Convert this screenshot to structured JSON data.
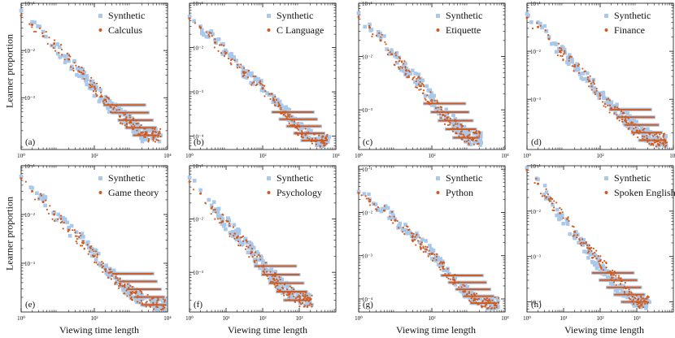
{
  "figure": {
    "ylabel": "Learner proportion",
    "xlabel": "Viewing time length"
  },
  "colors": {
    "synthetic": "#a9c8ea",
    "empirical": "#d45a1b",
    "axis": "#111111"
  },
  "chart_data": [
    {
      "panel": "(a)",
      "type": "scatter",
      "log_x": true,
      "log_y": true,
      "xlim": [
        1,
        10000
      ],
      "ylim": [
        8e-05,
        0.1
      ],
      "xticks": [
        {
          "v": 1,
          "label": "10⁰"
        },
        {
          "v": 100,
          "label": "10²"
        },
        {
          "v": 10000,
          "label": "10⁴"
        }
      ],
      "yticks": [
        {
          "v": 0.1,
          "label": "10⁻¹"
        },
        {
          "v": 0.01,
          "label": "10⁻²"
        },
        {
          "v": 0.001,
          "label": "10⁻³"
        }
      ],
      "series": [
        {
          "name": "Synthetic",
          "points": [
            [
              1,
              0.07
            ],
            [
              2,
              0.04
            ],
            [
              4,
              0.025
            ],
            [
              8,
              0.012
            ],
            [
              20,
              0.006
            ],
            [
              50,
              0.003
            ],
            [
              100,
              0.0015
            ],
            [
              200,
              0.0008
            ],
            [
              500,
              0.00045
            ],
            [
              1000,
              0.0003
            ],
            [
              2000,
              0.00016
            ]
          ]
        },
        {
          "name": "Calculus",
          "points": [
            [
              1,
              0.055
            ],
            [
              2,
              0.035
            ],
            [
              4,
              0.02
            ],
            [
              8,
              0.014
            ],
            [
              20,
              0.0065
            ],
            [
              50,
              0.0032
            ],
            [
              100,
              0.0017
            ],
            [
              200,
              0.0009
            ],
            [
              500,
              0.0004
            ],
            [
              1000,
              0.0003
            ],
            [
              3000,
              0.00016
            ]
          ]
        }
      ]
    },
    {
      "panel": "(b)",
      "type": "scatter",
      "log_x": true,
      "log_y": true,
      "xlim": [
        1,
        10000
      ],
      "ylim": [
        5e-05,
        0.1
      ],
      "xticks": [
        {
          "v": 1,
          "label": "10⁰"
        },
        {
          "v": 100,
          "label": "10²"
        },
        {
          "v": 10000,
          "label": "10⁴"
        }
      ],
      "yticks": [
        {
          "v": 0.1,
          "label": "10⁻¹"
        },
        {
          "v": 0.01,
          "label": "10⁻²"
        },
        {
          "v": 0.001,
          "label": "10⁻³"
        },
        {
          "v": 0.0001,
          "label": "10⁻⁴"
        }
      ],
      "series": [
        {
          "name": "Synthetic",
          "points": [
            [
              1,
              0.05
            ],
            [
              2,
              0.03
            ],
            [
              5,
              0.015
            ],
            [
              10,
              0.008
            ],
            [
              30,
              0.003
            ],
            [
              100,
              0.0013
            ],
            [
              200,
              0.0007
            ],
            [
              400,
              0.0004
            ],
            [
              800,
              0.00018
            ],
            [
              1500,
              0.00012
            ],
            [
              3000,
              8e-05
            ]
          ]
        },
        {
          "name": "C Language",
          "points": [
            [
              1,
              0.045
            ],
            [
              2,
              0.028
            ],
            [
              5,
              0.013
            ],
            [
              10,
              0.0075
            ],
            [
              30,
              0.0028
            ],
            [
              100,
              0.0012
            ],
            [
              200,
              0.00065
            ],
            [
              400,
              0.00035
            ],
            [
              800,
              0.00016
            ],
            [
              1500,
              0.00011
            ],
            [
              3000,
              8e-05
            ]
          ]
        }
      ]
    },
    {
      "panel": "(c)",
      "type": "scatter",
      "log_x": true,
      "log_y": true,
      "xlim": [
        1,
        10000
      ],
      "ylim": [
        0.00018,
        0.1
      ],
      "xticks": [
        {
          "v": 1,
          "label": "10⁰"
        },
        {
          "v": 100,
          "label": "10²"
        },
        {
          "v": 10000,
          "label": "10⁴"
        }
      ],
      "yticks": [
        {
          "v": 0.1,
          "label": "10⁻¹"
        },
        {
          "v": 0.01,
          "label": "10⁻²"
        },
        {
          "v": 0.001,
          "label": "10⁻³"
        }
      ],
      "series": [
        {
          "name": "Synthetic",
          "points": [
            [
              1,
              0.065
            ],
            [
              2,
              0.04
            ],
            [
              4,
              0.022
            ],
            [
              8,
              0.012
            ],
            [
              20,
              0.006
            ],
            [
              50,
              0.003
            ],
            [
              100,
              0.0016
            ],
            [
              200,
              0.0009
            ],
            [
              500,
              0.0005
            ],
            [
              1000,
              0.0003
            ]
          ]
        },
        {
          "name": "Etiquette",
          "points": [
            [
              1,
              0.055
            ],
            [
              2,
              0.035
            ],
            [
              4,
              0.02
            ],
            [
              8,
              0.011
            ],
            [
              20,
              0.0055
            ],
            [
              50,
              0.0028
            ],
            [
              100,
              0.0015
            ],
            [
              200,
              0.0008
            ],
            [
              500,
              0.00045
            ],
            [
              1000,
              0.0003
            ]
          ]
        }
      ]
    },
    {
      "panel": "(d)",
      "type": "scatter",
      "log_x": true,
      "log_y": true,
      "xlim": [
        1,
        10000
      ],
      "ylim": [
        9e-05,
        0.1
      ],
      "xticks": [
        {
          "v": 1,
          "label": "10⁰"
        },
        {
          "v": 100,
          "label": "10²"
        },
        {
          "v": 10000,
          "label": "10⁴"
        }
      ],
      "yticks": [
        {
          "v": 0.1,
          "label": "10⁻¹"
        },
        {
          "v": 0.01,
          "label": "10⁻²"
        },
        {
          "v": 0.001,
          "label": "10⁻³"
        }
      ],
      "series": [
        {
          "name": "Synthetic",
          "points": [
            [
              1,
              0.06
            ],
            [
              2,
              0.04
            ],
            [
              4,
              0.02
            ],
            [
              8,
              0.011
            ],
            [
              20,
              0.005
            ],
            [
              50,
              0.0025
            ],
            [
              100,
              0.0013
            ],
            [
              200,
              0.0007
            ],
            [
              500,
              0.0004
            ],
            [
              1000,
              0.00025
            ],
            [
              3000,
              0.00014
            ]
          ]
        },
        {
          "name": "Finance",
          "points": [
            [
              1,
              0.05
            ],
            [
              2,
              0.032
            ],
            [
              4,
              0.018
            ],
            [
              8,
              0.01
            ],
            [
              20,
              0.0048
            ],
            [
              50,
              0.0024
            ],
            [
              100,
              0.0012
            ],
            [
              200,
              0.00065
            ],
            [
              500,
              0.00035
            ],
            [
              1000,
              0.00022
            ],
            [
              3000,
              0.00014
            ]
          ]
        }
      ]
    },
    {
      "panel": "(e)",
      "type": "scatter",
      "log_x": true,
      "log_y": true,
      "xlim": [
        1,
        10000
      ],
      "ylim": [
        0.0001,
        0.1
      ],
      "xticks": [
        {
          "v": 1,
          "label": "10⁰"
        },
        {
          "v": 100,
          "label": "10²"
        },
        {
          "v": 10000,
          "label": "10⁴"
        }
      ],
      "yticks": [
        {
          "v": 0.1,
          "label": "10⁻¹"
        },
        {
          "v": 0.01,
          "label": "10⁻²"
        },
        {
          "v": 0.001,
          "label": "10⁻³"
        }
      ],
      "series": [
        {
          "name": "Synthetic",
          "points": [
            [
              1,
              0.06
            ],
            [
              2,
              0.035
            ],
            [
              4,
              0.02
            ],
            [
              8,
              0.011
            ],
            [
              20,
              0.005
            ],
            [
              50,
              0.0028
            ],
            [
              100,
              0.0015
            ],
            [
              200,
              0.0008
            ],
            [
              500,
              0.0004
            ],
            [
              1000,
              0.00025
            ],
            [
              5000,
              0.00014
            ]
          ]
        },
        {
          "name": "Game theory",
          "points": [
            [
              1,
              0.055
            ],
            [
              2,
              0.03
            ],
            [
              4,
              0.018
            ],
            [
              8,
              0.01
            ],
            [
              20,
              0.0048
            ],
            [
              50,
              0.0026
            ],
            [
              100,
              0.0014
            ],
            [
              200,
              0.00075
            ],
            [
              500,
              0.00038
            ],
            [
              1000,
              0.00025
            ],
            [
              5000,
              0.00014
            ]
          ]
        }
      ]
    },
    {
      "panel": "(f)",
      "type": "scatter",
      "log_x": true,
      "log_y": true,
      "xlim": [
        1,
        10000
      ],
      "ylim": [
        0.00018,
        0.1
      ],
      "xticks": [
        {
          "v": 1,
          "label": "10⁰"
        },
        {
          "v": 10,
          "label": "10¹"
        },
        {
          "v": 100,
          "label": "10²"
        },
        {
          "v": 1000,
          "label": "10³"
        }
      ],
      "yticks": [
        {
          "v": 0.1,
          "label": "10⁻¹"
        },
        {
          "v": 0.01,
          "label": "10⁻²"
        },
        {
          "v": 0.001,
          "label": "10⁻³"
        }
      ],
      "series": [
        {
          "name": "Synthetic",
          "points": [
            [
              1,
              0.06
            ],
            [
              2,
              0.035
            ],
            [
              4,
              0.018
            ],
            [
              8,
              0.01
            ],
            [
              20,
              0.005
            ],
            [
              50,
              0.0025
            ],
            [
              100,
              0.0014
            ],
            [
              200,
              0.0008
            ],
            [
              500,
              0.00045
            ],
            [
              1000,
              0.0003
            ]
          ]
        },
        {
          "name": "Psychology",
          "points": [
            [
              1,
              0.05
            ],
            [
              2,
              0.03
            ],
            [
              4,
              0.016
            ],
            [
              8,
              0.009
            ],
            [
              20,
              0.0045
            ],
            [
              50,
              0.0024
            ],
            [
              100,
              0.0013
            ],
            [
              200,
              0.00075
            ],
            [
              500,
              0.00042
            ],
            [
              1000,
              0.0003
            ]
          ]
        }
      ]
    },
    {
      "panel": "(g)",
      "type": "scatter",
      "log_x": true,
      "log_y": true,
      "xlim": [
        1,
        10000
      ],
      "ylim": [
        5e-05,
        0.12
      ],
      "xticks": [
        {
          "v": 1,
          "label": "10⁰"
        },
        {
          "v": 100,
          "label": "10²"
        },
        {
          "v": 10000,
          "label": "10⁴"
        }
      ],
      "yticks": [
        {
          "v": 0.1,
          "label": "10⁻¹"
        },
        {
          "v": 0.01,
          "label": "10⁻²"
        },
        {
          "v": 0.001,
          "label": "10⁻³"
        },
        {
          "v": 0.0001,
          "label": "10⁻⁴"
        }
      ],
      "series": [
        {
          "name": "Synthetic",
          "points": [
            [
              1,
              0.03
            ],
            [
              2,
              0.02
            ],
            [
              5,
              0.012
            ],
            [
              10,
              0.007
            ],
            [
              30,
              0.003
            ],
            [
              100,
              0.0012
            ],
            [
              200,
              0.0006
            ],
            [
              400,
              0.0003
            ],
            [
              800,
              0.00016
            ],
            [
              1500,
              0.0001
            ],
            [
              3000,
              8e-05
            ]
          ]
        },
        {
          "name": "Python",
          "points": [
            [
              1,
              0.028
            ],
            [
              2,
              0.018
            ],
            [
              5,
              0.011
            ],
            [
              10,
              0.0065
            ],
            [
              30,
              0.0028
            ],
            [
              100,
              0.0011
            ],
            [
              200,
              0.00055
            ],
            [
              400,
              0.00028
            ],
            [
              800,
              0.00015
            ],
            [
              1500,
              0.0001
            ],
            [
              3000,
              8e-05
            ]
          ]
        }
      ]
    },
    {
      "panel": "(h)",
      "type": "scatter",
      "log_x": true,
      "log_y": true,
      "xlim": [
        1,
        10000
      ],
      "ylim": [
        6e-05,
        0.1
      ],
      "xticks": [
        {
          "v": 1,
          "label": "10⁰"
        },
        {
          "v": 10,
          "label": "10¹"
        },
        {
          "v": 100,
          "label": "10²"
        },
        {
          "v": 1000,
          "label": "10³"
        }
      ],
      "yticks": [
        {
          "v": 0.1,
          "label": "10⁻¹"
        },
        {
          "v": 0.01,
          "label": "10⁻²"
        },
        {
          "v": 0.001,
          "label": "10⁻³"
        },
        {
          "v": 0.0001,
          "label": "10⁻⁴"
        }
      ],
      "series": [
        {
          "name": "Synthetic",
          "points": [
            [
              1,
              0.09
            ],
            [
              2,
              0.05
            ],
            [
              4,
              0.02
            ],
            [
              8,
              0.008
            ],
            [
              20,
              0.003
            ],
            [
              50,
              0.0012
            ],
            [
              100,
              0.0006
            ],
            [
              200,
              0.0003
            ],
            [
              500,
              0.00015
            ],
            [
              1000,
              0.0001
            ]
          ]
        },
        {
          "name": "Spoken English",
          "points": [
            [
              1,
              0.08
            ],
            [
              2,
              0.04
            ],
            [
              4,
              0.018
            ],
            [
              8,
              0.009
            ],
            [
              20,
              0.0035
            ],
            [
              50,
              0.0015
            ],
            [
              100,
              0.0008
            ],
            [
              200,
              0.0004
            ],
            [
              500,
              0.0002
            ],
            [
              1000,
              0.0001
            ]
          ]
        }
      ]
    }
  ]
}
